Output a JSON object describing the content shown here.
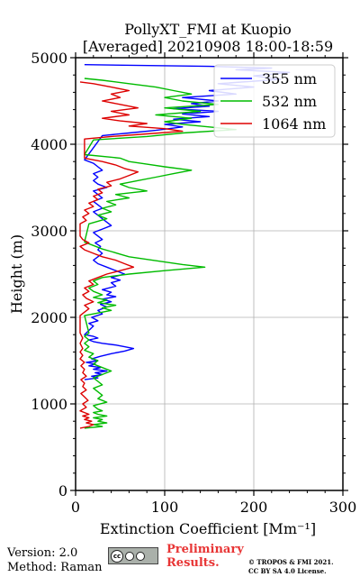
{
  "chart_data": {
    "type": "line",
    "title": "PollyXT_FMI at Kuopio",
    "subtitle": "[Averaged] 20210908 18:00-18:59",
    "xlabel": "Extinction Coefficient [Mm⁻¹]",
    "ylabel": "Height (m)",
    "xlim": [
      0,
      300
    ],
    "ylim": [
      0,
      5000
    ],
    "xticks": [
      "0",
      "100",
      "200",
      "300"
    ],
    "yticks": [
      "0",
      "1000",
      "2000",
      "3000",
      "4000",
      "5000"
    ],
    "grid": true,
    "legend_position": "top-right",
    "legend": [
      "355 nm",
      "532 nm",
      "1064 nm"
    ],
    "series": [
      {
        "name": "355 nm",
        "color": "#0000ff",
        "points": [
          [
            10,
            1280
          ],
          [
            25,
            1300
          ],
          [
            18,
            1320
          ],
          [
            30,
            1340
          ],
          [
            22,
            1360
          ],
          [
            35,
            1380
          ],
          [
            20,
            1400
          ],
          [
            28,
            1420
          ],
          [
            15,
            1440
          ],
          [
            22,
            1460
          ],
          [
            12,
            1480
          ],
          [
            25,
            1500
          ],
          [
            18,
            1520
          ],
          [
            28,
            1550
          ],
          [
            40,
            1580
          ],
          [
            55,
            1610
          ],
          [
            65,
            1640
          ],
          [
            55,
            1660
          ],
          [
            45,
            1680
          ],
          [
            30,
            1700
          ],
          [
            20,
            1720
          ],
          [
            15,
            1740
          ],
          [
            25,
            1760
          ],
          [
            20,
            1780
          ],
          [
            10,
            1800
          ],
          [
            20,
            1900
          ],
          [
            15,
            1930
          ],
          [
            25,
            1960
          ],
          [
            18,
            2000
          ],
          [
            30,
            2040
          ],
          [
            25,
            2080
          ],
          [
            35,
            2120
          ],
          [
            28,
            2150
          ],
          [
            40,
            2180
          ],
          [
            30,
            2210
          ],
          [
            45,
            2240
          ],
          [
            35,
            2260
          ],
          [
            40,
            2290
          ],
          [
            30,
            2320
          ],
          [
            45,
            2360
          ],
          [
            40,
            2400
          ],
          [
            50,
            2430
          ],
          [
            40,
            2460
          ],
          [
            55,
            2500
          ],
          [
            45,
            2540
          ],
          [
            35,
            2580
          ],
          [
            25,
            2620
          ],
          [
            20,
            2660
          ],
          [
            25,
            2700
          ],
          [
            30,
            2740
          ],
          [
            25,
            2780
          ],
          [
            28,
            2820
          ],
          [
            22,
            2860
          ],
          [
            30,
            2900
          ],
          [
            25,
            2940
          ],
          [
            20,
            2980
          ],
          [
            30,
            3020
          ],
          [
            40,
            3060
          ],
          [
            35,
            3100
          ],
          [
            30,
            3140
          ],
          [
            25,
            3180
          ],
          [
            20,
            3220
          ],
          [
            30,
            3260
          ],
          [
            25,
            3300
          ],
          [
            20,
            3340
          ],
          [
            30,
            3380
          ],
          [
            25,
            3420
          ],
          [
            20,
            3460
          ],
          [
            35,
            3500
          ],
          [
            25,
            3540
          ],
          [
            20,
            3580
          ],
          [
            25,
            3620
          ],
          [
            20,
            3660
          ],
          [
            30,
            3700
          ],
          [
            25,
            3740
          ],
          [
            20,
            3780
          ],
          [
            10,
            3820
          ],
          [
            30,
            4100
          ],
          [
            60,
            4130
          ],
          [
            90,
            4160
          ],
          [
            120,
            4200
          ],
          [
            100,
            4230
          ],
          [
            140,
            4260
          ],
          [
            110,
            4290
          ],
          [
            150,
            4320
          ],
          [
            120,
            4350
          ],
          [
            160,
            4380
          ],
          [
            110,
            4410
          ],
          [
            150,
            4440
          ],
          [
            130,
            4470
          ],
          [
            160,
            4500
          ],
          [
            120,
            4540
          ],
          [
            180,
            4580
          ],
          [
            150,
            4620
          ],
          [
            200,
            4660
          ],
          [
            160,
            4700
          ],
          [
            230,
            4750
          ],
          [
            200,
            4790
          ],
          [
            240,
            4830
          ],
          [
            180,
            4860
          ],
          [
            220,
            4880
          ],
          [
            150,
            4900
          ],
          [
            10,
            4920
          ]
        ]
      },
      {
        "name": "532 nm",
        "color": "#00bb00",
        "points": [
          [
            10,
            720
          ],
          [
            30,
            740
          ],
          [
            20,
            760
          ],
          [
            35,
            780
          ],
          [
            25,
            800
          ],
          [
            30,
            820
          ],
          [
            20,
            840
          ],
          [
            35,
            860
          ],
          [
            25,
            880
          ],
          [
            20,
            900
          ],
          [
            30,
            920
          ],
          [
            25,
            940
          ],
          [
            20,
            980
          ],
          [
            35,
            1020
          ],
          [
            25,
            1060
          ],
          [
            30,
            1100
          ],
          [
            25,
            1140
          ],
          [
            20,
            1180
          ],
          [
            30,
            1220
          ],
          [
            25,
            1260
          ],
          [
            20,
            1300
          ],
          [
            30,
            1340
          ],
          [
            40,
            1380
          ],
          [
            30,
            1420
          ],
          [
            20,
            1460
          ],
          [
            25,
            1500
          ],
          [
            15,
            1540
          ],
          [
            20,
            1580
          ],
          [
            10,
            1620
          ],
          [
            15,
            1660
          ],
          [
            10,
            1700
          ],
          [
            15,
            1740
          ],
          [
            10,
            1780
          ],
          [
            15,
            1820
          ],
          [
            10,
            2020
          ],
          [
            25,
            2050
          ],
          [
            40,
            2080
          ],
          [
            30,
            2110
          ],
          [
            45,
            2140
          ],
          [
            25,
            2170
          ],
          [
            35,
            2200
          ],
          [
            20,
            2230
          ],
          [
            30,
            2260
          ],
          [
            20,
            2300
          ],
          [
            15,
            2340
          ],
          [
            25,
            2380
          ],
          [
            20,
            2420
          ],
          [
            30,
            2460
          ],
          [
            60,
            2500
          ],
          [
            100,
            2540
          ],
          [
            145,
            2580
          ],
          [
            120,
            2610
          ],
          [
            100,
            2640
          ],
          [
            80,
            2670
          ],
          [
            60,
            2700
          ],
          [
            50,
            2730
          ],
          [
            40,
            2760
          ],
          [
            30,
            2790
          ],
          [
            20,
            2830
          ],
          [
            10,
            2870
          ],
          [
            15,
            3080
          ],
          [
            25,
            3110
          ],
          [
            35,
            3140
          ],
          [
            25,
            3180
          ],
          [
            40,
            3220
          ],
          [
            30,
            3260
          ],
          [
            45,
            3300
          ],
          [
            35,
            3340
          ],
          [
            60,
            3380
          ],
          [
            45,
            3420
          ],
          [
            80,
            3460
          ],
          [
            60,
            3500
          ],
          [
            50,
            3540
          ],
          [
            70,
            3580
          ],
          [
            90,
            3620
          ],
          [
            110,
            3660
          ],
          [
            130,
            3700
          ],
          [
            100,
            3740
          ],
          [
            80,
            3770
          ],
          [
            60,
            3800
          ],
          [
            50,
            3840
          ],
          [
            10,
            3880
          ],
          [
            20,
            4050
          ],
          [
            80,
            4090
          ],
          [
            120,
            4130
          ],
          [
            180,
            4170
          ],
          [
            150,
            4200
          ],
          [
            120,
            4230
          ],
          [
            100,
            4260
          ],
          [
            130,
            4300
          ],
          [
            90,
            4340
          ],
          [
            140,
            4380
          ],
          [
            100,
            4420
          ],
          [
            160,
            4460
          ],
          [
            120,
            4500
          ],
          [
            100,
            4540
          ],
          [
            130,
            4580
          ],
          [
            110,
            4620
          ],
          [
            90,
            4660
          ],
          [
            60,
            4700
          ],
          [
            30,
            4740
          ],
          [
            10,
            4760
          ]
        ]
      },
      {
        "name": "1064 nm",
        "color": "#dd0000",
        "points": [
          [
            5,
            720
          ],
          [
            15,
            740
          ],
          [
            20,
            760
          ],
          [
            12,
            780
          ],
          [
            18,
            800
          ],
          [
            10,
            820
          ],
          [
            15,
            840
          ],
          [
            8,
            860
          ],
          [
            15,
            880
          ],
          [
            10,
            900
          ],
          [
            5,
            920
          ],
          [
            12,
            960
          ],
          [
            8,
            1000
          ],
          [
            14,
            1040
          ],
          [
            10,
            1080
          ],
          [
            6,
            1120
          ],
          [
            12,
            1160
          ],
          [
            8,
            1200
          ],
          [
            10,
            1240
          ],
          [
            6,
            1280
          ],
          [
            12,
            1320
          ],
          [
            8,
            1360
          ],
          [
            10,
            1400
          ],
          [
            6,
            1440
          ],
          [
            10,
            1480
          ],
          [
            5,
            1520
          ],
          [
            8,
            1560
          ],
          [
            5,
            1600
          ],
          [
            8,
            1640
          ],
          [
            5,
            1700
          ],
          [
            8,
            1760
          ],
          [
            5,
            1820
          ],
          [
            5,
            2020
          ],
          [
            10,
            2060
          ],
          [
            15,
            2100
          ],
          [
            10,
            2140
          ],
          [
            20,
            2180
          ],
          [
            12,
            2220
          ],
          [
            8,
            2260
          ],
          [
            15,
            2300
          ],
          [
            10,
            2340
          ],
          [
            20,
            2380
          ],
          [
            15,
            2420
          ],
          [
            25,
            2460
          ],
          [
            35,
            2500
          ],
          [
            50,
            2540
          ],
          [
            65,
            2580
          ],
          [
            55,
            2620
          ],
          [
            45,
            2660
          ],
          [
            30,
            2700
          ],
          [
            20,
            2740
          ],
          [
            10,
            2780
          ],
          [
            5,
            2820
          ],
          [
            15,
            2860
          ],
          [
            8,
            2900
          ],
          [
            5,
            2940
          ],
          [
            5,
            3080
          ],
          [
            12,
            3120
          ],
          [
            8,
            3160
          ],
          [
            15,
            3200
          ],
          [
            10,
            3240
          ],
          [
            20,
            3280
          ],
          [
            15,
            3320
          ],
          [
            25,
            3360
          ],
          [
            20,
            3400
          ],
          [
            30,
            3440
          ],
          [
            25,
            3480
          ],
          [
            40,
            3520
          ],
          [
            35,
            3560
          ],
          [
            50,
            3600
          ],
          [
            60,
            3640
          ],
          [
            70,
            3680
          ],
          [
            55,
            3720
          ],
          [
            45,
            3760
          ],
          [
            30,
            3800
          ],
          [
            10,
            3840
          ],
          [
            10,
            4060
          ],
          [
            40,
            4090
          ],
          [
            80,
            4120
          ],
          [
            120,
            4150
          ],
          [
            100,
            4180
          ],
          [
            60,
            4210
          ],
          [
            80,
            4240
          ],
          [
            50,
            4270
          ],
          [
            30,
            4300
          ],
          [
            60,
            4340
          ],
          [
            40,
            4380
          ],
          [
            70,
            4420
          ],
          [
            50,
            4460
          ],
          [
            30,
            4500
          ],
          [
            50,
            4540
          ],
          [
            40,
            4580
          ],
          [
            60,
            4620
          ],
          [
            40,
            4660
          ],
          [
            20,
            4700
          ],
          [
            5,
            4720
          ]
        ]
      }
    ]
  },
  "footer": {
    "version": "Version: 2.0",
    "method": "Method: Raman",
    "preliminary_line1": "Preliminary",
    "preliminary_line2": "Results.",
    "copyright_line1": "© TROPOS & FMI 2021.",
    "copyright_line2": "CC BY SA 4.0 License.",
    "license_badge": "cc",
    "license_badge_icon": "cc-by-sa-icon"
  }
}
